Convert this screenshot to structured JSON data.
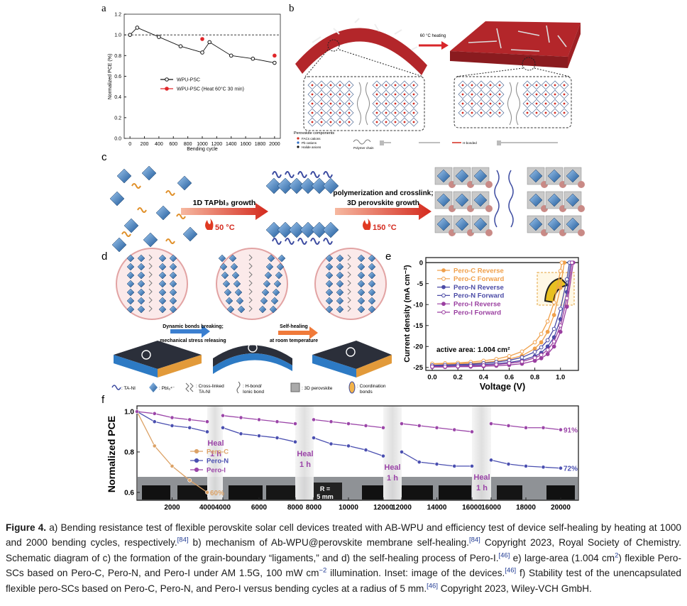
{
  "panel_labels": [
    "a",
    "b",
    "c",
    "d",
    "e",
    "f"
  ],
  "chart_data": [
    {
      "type": "line",
      "ylabel": "Normalized PCE (%)",
      "xlabel": "Bending cycle",
      "xlim": [
        -80,
        2080
      ],
      "ylim": [
        0,
        1.2
      ],
      "xticks": [
        0,
        200,
        400,
        600,
        800,
        1000,
        1200,
        1400,
        1600,
        1800,
        2000
      ],
      "yticks": [
        {
          "value": 0,
          "label": "0.0"
        },
        0.2,
        0.4,
        0.6,
        0.8,
        {
          "value": 1,
          "label": "1.0"
        },
        1.2
      ],
      "hline": 1.0,
      "legend": "center",
      "series": [
        {
          "name": "WPU-PSC",
          "color": "#111111",
          "marker": "open",
          "line_style": "solid",
          "x": [
            0,
            100,
            400,
            700,
            1000,
            1100,
            1400,
            1700,
            2000
          ],
          "values": [
            1.0,
            1.07,
            0.98,
            0.89,
            0.83,
            0.93,
            0.8,
            0.77,
            0.73
          ]
        },
        {
          "name": "WPU-PSC (Heat 60°C 30 min)",
          "color": "#e0262a",
          "marker": "filled",
          "line_style": "none",
          "x": [
            1000,
            2000
          ],
          "values": [
            0.96,
            0.8
          ]
        }
      ]
    },
    {
      "type": "line",
      "ylabel": "Current density (mA cm⁻²)",
      "xlabel": "Voltage (V)",
      "xlim": [
        -0.05,
        1.14
      ],
      "ylim": [
        -25.7,
        1.2
      ],
      "xticks": [
        {
          "value": 0,
          "label": "0.0"
        },
        0.2,
        0.4,
        0.6,
        0.8,
        {
          "value": 1,
          "label": "1.0"
        }
      ],
      "yticks": [
        0,
        -5,
        -10,
        -15,
        -20,
        -25
      ],
      "hline": 0,
      "annotation": "active area: 1.004 cm²",
      "legend": "upper left",
      "series": [
        {
          "name": "Pero-C Reverse",
          "color": "#f0a04b",
          "marker": "filled",
          "line_style": "solid",
          "x": [
            0,
            0.1,
            0.2,
            0.3,
            0.4,
            0.5,
            0.6,
            0.7,
            0.8,
            0.85,
            0.9,
            0.95,
            1.0,
            1.03
          ],
          "values": [
            -24.2,
            -24.2,
            -24.1,
            -24.0,
            -23.8,
            -23.5,
            -23.0,
            -22.2,
            -20.5,
            -19.0,
            -16.5,
            -12.5,
            -6.0,
            0
          ]
        },
        {
          "name": "Pero-C Forward",
          "color": "#f0a04b",
          "marker": "open",
          "line_style": "solid",
          "x": [
            0,
            0.1,
            0.2,
            0.3,
            0.4,
            0.5,
            0.6,
            0.7,
            0.8,
            0.85,
            0.9,
            0.95,
            1.0,
            1.01
          ],
          "values": [
            -24.1,
            -24.0,
            -23.9,
            -23.7,
            -23.4,
            -23.0,
            -22.3,
            -21.2,
            -19.0,
            -17.0,
            -14.0,
            -9.5,
            -2.0,
            0
          ]
        },
        {
          "name": "Pero-N Reverse",
          "color": "#4b4ba6",
          "marker": "filled",
          "line_style": "solid",
          "x": [
            0,
            0.1,
            0.2,
            0.3,
            0.4,
            0.5,
            0.6,
            0.7,
            0.8,
            0.85,
            0.9,
            0.95,
            1.0,
            1.05,
            1.08
          ],
          "values": [
            -24.6,
            -24.6,
            -24.5,
            -24.4,
            -24.3,
            -24.1,
            -23.8,
            -23.3,
            -22.3,
            -21.5,
            -20.0,
            -17.8,
            -13.5,
            -7.0,
            0
          ]
        },
        {
          "name": "Pero-N Forward",
          "color": "#4b4ba6",
          "marker": "open",
          "line_style": "solid",
          "x": [
            0,
            0.1,
            0.2,
            0.3,
            0.4,
            0.5,
            0.6,
            0.7,
            0.8,
            0.85,
            0.9,
            0.95,
            1.0,
            1.05,
            1.07
          ],
          "values": [
            -24.5,
            -24.4,
            -24.3,
            -24.2,
            -24.0,
            -23.7,
            -23.3,
            -22.6,
            -21.3,
            -20.2,
            -18.5,
            -15.8,
            -11.0,
            -4.0,
            0
          ]
        },
        {
          "name": "Pero-I Reverse",
          "color": "#9a3fa0",
          "marker": "filled",
          "line_style": "solid",
          "x": [
            0,
            0.1,
            0.2,
            0.3,
            0.4,
            0.5,
            0.6,
            0.7,
            0.8,
            0.85,
            0.9,
            0.95,
            1.0,
            1.05,
            1.1
          ],
          "values": [
            -24.9,
            -24.9,
            -24.8,
            -24.8,
            -24.7,
            -24.6,
            -24.4,
            -24.1,
            -23.4,
            -22.8,
            -21.8,
            -20.0,
            -16.5,
            -10.5,
            0
          ]
        },
        {
          "name": "Pero-I Forward",
          "color": "#9a3fa0",
          "marker": "open",
          "line_style": "solid",
          "x": [
            0,
            0.1,
            0.2,
            0.3,
            0.4,
            0.5,
            0.6,
            0.7,
            0.8,
            0.85,
            0.9,
            0.95,
            1.0,
            1.05,
            1.09
          ],
          "values": [
            -24.8,
            -24.8,
            -24.7,
            -24.6,
            -24.5,
            -24.3,
            -24.0,
            -23.6,
            -22.7,
            -22.0,
            -20.8,
            -18.8,
            -15.0,
            -8.5,
            0
          ]
        }
      ]
    },
    {
      "type": "line",
      "ylabel": "Normalized PCE",
      "x_segments": [
        [
          0,
          4000
        ],
        [
          4000,
          8000
        ],
        [
          8000,
          12000
        ],
        [
          12000,
          16000
        ],
        [
          16000,
          20000
        ]
      ],
      "xticks": [
        [
          2000,
          4000
        ],
        [
          4000,
          6000,
          8000
        ],
        [
          8000,
          10000,
          12000
        ],
        [
          12000,
          14000,
          16000
        ],
        [
          16000,
          18000,
          20000
        ]
      ],
      "ylim": [
        0.561,
        1.028
      ],
      "yticks": [
        0.6,
        0.8,
        {
          "value": 1,
          "label": "1.0"
        }
      ],
      "heal_labels": [
        [
          "Heal",
          "1 h"
        ],
        [
          "Heal",
          "1 h"
        ],
        [
          "Heal",
          "1 h"
        ],
        [
          "Heal",
          "1 h"
        ]
      ],
      "photo_label": [
        "R =",
        "5 mm"
      ],
      "legend": "center left",
      "series": [
        {
          "name": "Pero-C",
          "color": "#dca266",
          "marker": "filled",
          "line_style": "solid",
          "end_label": "60%",
          "x": [
            0,
            1000,
            2000,
            3000,
            4000
          ],
          "values": [
            1.0,
            0.83,
            0.73,
            0.66,
            0.6
          ]
        },
        {
          "name": "Pero-N",
          "color": "#4a4fb0",
          "marker": "filled",
          "line_style": "solid",
          "end_label": "72%",
          "x": [
            0,
            1000,
            2000,
            3000,
            4000,
            null,
            4000,
            5000,
            6000,
            7000,
            8000,
            null,
            8000,
            9000,
            10000,
            11000,
            12000,
            null,
            12000,
            13000,
            14000,
            15000,
            16000,
            null,
            16000,
            17000,
            18000,
            19000,
            20000
          ],
          "values": [
            1.0,
            0.95,
            0.93,
            0.92,
            0.9,
            null,
            0.92,
            0.89,
            0.88,
            0.87,
            0.85,
            null,
            0.87,
            0.84,
            0.83,
            0.81,
            0.78,
            null,
            0.8,
            0.75,
            0.74,
            0.73,
            0.73,
            null,
            0.76,
            0.74,
            0.73,
            0.725,
            0.72
          ]
        },
        {
          "name": "Pero-I",
          "color": "#9b45a8",
          "marker": "filled",
          "line_style": "solid",
          "end_label": "91%",
          "x": [
            0,
            1000,
            2000,
            3000,
            4000,
            null,
            4000,
            5000,
            6000,
            7000,
            8000,
            null,
            8000,
            9000,
            10000,
            11000,
            12000,
            null,
            12000,
            13000,
            14000,
            15000,
            16000,
            null,
            16000,
            17000,
            18000,
            19000,
            20000
          ],
          "values": [
            1.0,
            0.99,
            0.97,
            0.96,
            0.95,
            null,
            0.98,
            0.97,
            0.96,
            0.95,
            0.94,
            null,
            0.96,
            0.95,
            0.94,
            0.93,
            0.92,
            null,
            0.94,
            0.93,
            0.92,
            0.91,
            0.9,
            null,
            0.94,
            0.93,
            0.92,
            0.92,
            0.91
          ]
        }
      ]
    }
  ],
  "panel_b": {
    "arrow_label": "60 °C heating",
    "legend_title": "Perovskite components",
    "legend": [
      "FACs cations",
      "Pb cations",
      "Halide anions",
      "Polymer chain",
      "H-bonded"
    ]
  },
  "panel_c": {
    "step1": "1D TAPbI₃ growth",
    "temp1": "50 °C",
    "step2": [
      "polymerization and crosslink;",
      "3D perovskite growth"
    ],
    "temp2": "150 °C"
  },
  "panel_d": {
    "step1": [
      "Dynamic bonds breaking;",
      "mechanical stress releasing"
    ],
    "step2": [
      "Self-healing",
      "at room temperature"
    ],
    "legend": [
      [
        ": TA-NI"
      ],
      [
        ": PbI₆⁴⁻"
      ],
      [
        ": Cross-linked",
        "TA-NI"
      ],
      [
        ": H-bond/",
        "Ionic bond"
      ],
      [
        ": 3D perovskite"
      ],
      [
        ": Coordination",
        "bonds"
      ]
    ]
  },
  "caption": {
    "label": "Figure 4.",
    "runs": [
      {
        "text": " a) Bending resistance test of flexible perovskite solar cell devices treated with AB-WPU and efficiency test of device self-healing by heating at 1000 and 2000 bending cycles, respectively."
      },
      {
        "sup": "[84]"
      },
      {
        "text": " b) mechanism of Ab-WPU@perovskite membrane self-healing."
      },
      {
        "sup": "[84]"
      },
      {
        "text": " Copyright 2023, Royal Society of Chemistry. Schematic diagram of c) the formation of the grain-boundary “ligaments,” and d) the self-healing process of Pero-I."
      },
      {
        "sup": "[46]"
      },
      {
        "text": " e) large-area (1.004 cm"
      },
      {
        "sup": "2"
      },
      {
        "text": ") flexible Pero-SCs based on Pero-C, Pero-N, and Pero-I under AM 1.5G, 100 mW cm"
      },
      {
        "sup": "−2"
      },
      {
        "text": " illumination. Inset: image of the devices."
      },
      {
        "sup": "[46]"
      },
      {
        "text": " f) Stability test of the unencapsulated flexible pero-SCs based on Pero-C, Pero-N, and Pero-I versus bending cycles at a radius of 5 mm."
      },
      {
        "sup": "[46]"
      },
      {
        "text": " Copyright 2023, Wiley-VCH GmbH."
      }
    ]
  }
}
